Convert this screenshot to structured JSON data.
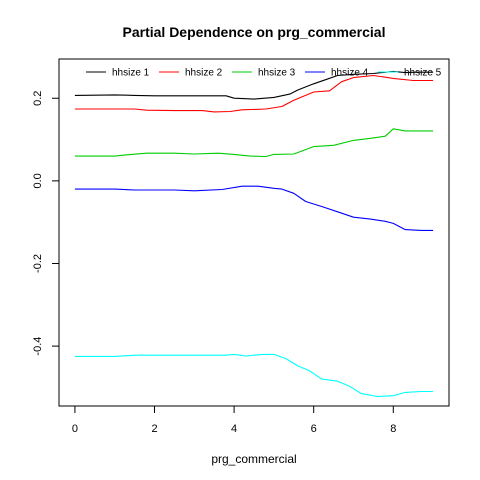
{
  "chart_data": {
    "type": "line",
    "title": "Partial Dependence on prg_commercial",
    "xlabel": "prg_commercial",
    "ylabel": "",
    "xlim": [
      -0.4,
      9.4
    ],
    "ylim": [
      -0.545,
      0.295
    ],
    "x_ticks": [
      0,
      2,
      4,
      6,
      8
    ],
    "x_tick_labels": [
      "0",
      "2",
      "4",
      "6",
      "8"
    ],
    "y_ticks": [
      -0.4,
      -0.2,
      0.0,
      0.2
    ],
    "y_tick_labels": [
      "-0.4",
      "-0.2",
      "0.0",
      "0.2"
    ],
    "grid": false,
    "legend_position": "top",
    "series": [
      {
        "name": "hhsize 1",
        "color": "#000000",
        "points": [
          [
            0,
            0.207
          ],
          [
            1,
            0.208
          ],
          [
            1.5,
            0.207
          ],
          [
            2,
            0.206
          ],
          [
            3,
            0.206
          ],
          [
            3.8,
            0.206
          ],
          [
            4.0,
            0.2
          ],
          [
            4.5,
            0.198
          ],
          [
            5.0,
            0.202
          ],
          [
            5.4,
            0.21
          ],
          [
            5.6,
            0.22
          ],
          [
            6.0,
            0.235
          ],
          [
            6.3,
            0.245
          ],
          [
            6.6,
            0.255
          ],
          [
            7.0,
            0.258
          ],
          [
            7.5,
            0.26
          ],
          [
            8.0,
            0.265
          ],
          [
            8.3,
            0.262
          ],
          [
            8.6,
            0.263
          ],
          [
            9.0,
            0.263
          ]
        ]
      },
      {
        "name": "hhsize 2",
        "color": "#ff0000",
        "points": [
          [
            0,
            0.174
          ],
          [
            1.5,
            0.174
          ],
          [
            1.8,
            0.171
          ],
          [
            2.5,
            0.17
          ],
          [
            3.2,
            0.17
          ],
          [
            3.5,
            0.167
          ],
          [
            3.9,
            0.168
          ],
          [
            4.2,
            0.172
          ],
          [
            4.8,
            0.174
          ],
          [
            5.2,
            0.18
          ],
          [
            5.5,
            0.195
          ],
          [
            6.0,
            0.215
          ],
          [
            6.4,
            0.218
          ],
          [
            6.7,
            0.24
          ],
          [
            7.0,
            0.25
          ],
          [
            7.5,
            0.255
          ],
          [
            8.0,
            0.248
          ],
          [
            8.5,
            0.243
          ],
          [
            9.0,
            0.243
          ]
        ]
      },
      {
        "name": "hhsize 3",
        "color": "#00cd00",
        "points": [
          [
            0,
            0.06
          ],
          [
            1.0,
            0.06
          ],
          [
            1.3,
            0.063
          ],
          [
            1.8,
            0.067
          ],
          [
            2.5,
            0.067
          ],
          [
            3.0,
            0.065
          ],
          [
            3.6,
            0.067
          ],
          [
            4.0,
            0.064
          ],
          [
            4.4,
            0.06
          ],
          [
            4.8,
            0.059
          ],
          [
            5.0,
            0.064
          ],
          [
            5.5,
            0.065
          ],
          [
            6.0,
            0.083
          ],
          [
            6.5,
            0.086
          ],
          [
            7.0,
            0.098
          ],
          [
            7.5,
            0.104
          ],
          [
            7.8,
            0.108
          ],
          [
            8.0,
            0.126
          ],
          [
            8.3,
            0.121
          ],
          [
            8.7,
            0.121
          ],
          [
            9.0,
            0.121
          ]
        ]
      },
      {
        "name": "hhsize 4",
        "color": "#0000ff",
        "points": [
          [
            0,
            -0.02
          ],
          [
            1.0,
            -0.02
          ],
          [
            1.5,
            -0.022
          ],
          [
            2.5,
            -0.022
          ],
          [
            3.0,
            -0.024
          ],
          [
            3.7,
            -0.021
          ],
          [
            4.2,
            -0.013
          ],
          [
            4.6,
            -0.013
          ],
          [
            5.0,
            -0.018
          ],
          [
            5.2,
            -0.02
          ],
          [
            5.5,
            -0.03
          ],
          [
            5.8,
            -0.05
          ],
          [
            6.2,
            -0.062
          ],
          [
            6.6,
            -0.075
          ],
          [
            7.0,
            -0.088
          ],
          [
            7.4,
            -0.092
          ],
          [
            7.8,
            -0.098
          ],
          [
            8.0,
            -0.103
          ],
          [
            8.3,
            -0.118
          ],
          [
            8.7,
            -0.12
          ],
          [
            9.0,
            -0.12
          ]
        ]
      },
      {
        "name": "hhsize 5",
        "color": "#00ffff",
        "points": [
          [
            0,
            -0.425
          ],
          [
            1.0,
            -0.425
          ],
          [
            1.5,
            -0.422
          ],
          [
            2.5,
            -0.422
          ],
          [
            3.8,
            -0.422
          ],
          [
            4.0,
            -0.42
          ],
          [
            4.3,
            -0.424
          ],
          [
            4.7,
            -0.42
          ],
          [
            5.0,
            -0.42
          ],
          [
            5.3,
            -0.43
          ],
          [
            5.6,
            -0.448
          ],
          [
            5.9,
            -0.46
          ],
          [
            6.2,
            -0.48
          ],
          [
            6.6,
            -0.485
          ],
          [
            6.9,
            -0.497
          ],
          [
            7.2,
            -0.515
          ],
          [
            7.6,
            -0.522
          ],
          [
            8.0,
            -0.52
          ],
          [
            8.3,
            -0.512
          ],
          [
            8.7,
            -0.51
          ],
          [
            9.0,
            -0.51
          ]
        ]
      }
    ]
  }
}
